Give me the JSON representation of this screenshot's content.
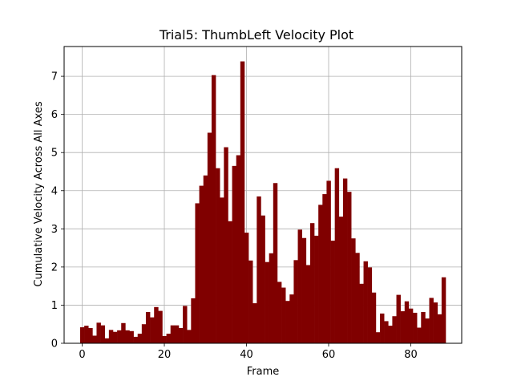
{
  "chart_data": {
    "type": "bar",
    "title": "Trial5: ThumbLeft Velocity Plot",
    "xlabel": "Frame",
    "ylabel": "Cumulative Velocity Across All Axes",
    "xlim": [
      -4.4,
      92.4
    ],
    "ylim": [
      0,
      7.78
    ],
    "xticks": [
      0,
      20,
      40,
      60,
      80
    ],
    "yticks": [
      0,
      1,
      2,
      3,
      4,
      5,
      6,
      7
    ],
    "grid": true,
    "bar_color": "#800000",
    "x": [
      0,
      1,
      2,
      3,
      4,
      5,
      6,
      7,
      8,
      9,
      10,
      11,
      12,
      13,
      14,
      15,
      16,
      17,
      18,
      19,
      20,
      21,
      22,
      23,
      24,
      25,
      26,
      27,
      28,
      29,
      30,
      31,
      32,
      33,
      34,
      35,
      36,
      37,
      38,
      39,
      40,
      41,
      42,
      43,
      44,
      45,
      46,
      47,
      48,
      49,
      50,
      51,
      52,
      53,
      54,
      55,
      56,
      57,
      58,
      59,
      60,
      61,
      62,
      63,
      64,
      65,
      66,
      67,
      68,
      69,
      70,
      71,
      72,
      73,
      74,
      75,
      76,
      77,
      78,
      79,
      80,
      81,
      82,
      83,
      84,
      85,
      86,
      87,
      88
    ],
    "values": [
      0.42,
      0.46,
      0.4,
      0.2,
      0.54,
      0.47,
      0.13,
      0.35,
      0.3,
      0.34,
      0.53,
      0.34,
      0.32,
      0.17,
      0.25,
      0.5,
      0.82,
      0.68,
      0.95,
      0.85,
      0.19,
      0.25,
      0.47,
      0.47,
      0.4,
      0.98,
      0.35,
      1.18,
      3.67,
      4.13,
      4.4,
      5.52,
      7.03,
      4.59,
      3.82,
      5.14,
      3.2,
      4.65,
      4.93,
      7.39,
      2.9,
      2.17,
      1.05,
      3.85,
      3.35,
      2.13,
      2.36,
      4.2,
      1.61,
      1.46,
      1.11,
      1.28,
      2.18,
      2.98,
      2.76,
      2.05,
      3.15,
      2.82,
      3.63,
      3.91,
      4.26,
      2.69,
      4.59,
      3.32,
      4.32,
      3.97,
      2.75,
      2.37,
      1.56,
      2.15,
      1.99,
      1.33,
      0.29,
      0.78,
      0.58,
      0.46,
      0.71,
      1.27,
      0.84,
      1.1,
      0.91,
      0.8,
      0.41,
      0.82,
      0.65,
      1.19,
      1.07,
      0.76,
      1.73
    ]
  }
}
